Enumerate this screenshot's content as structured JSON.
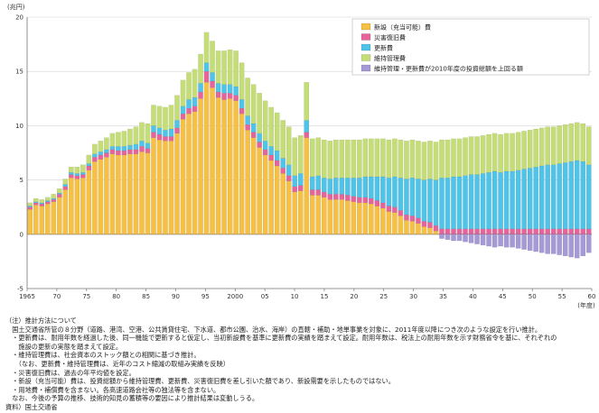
{
  "chart_data": {
    "type": "bar",
    "stacked": true,
    "unit_label": "(兆円)",
    "x_unit_label": "(年度)",
    "x_tick_labels": [
      "1965",
      "70",
      "75",
      "80",
      "85",
      "90",
      "95",
      "2000",
      "05",
      "10",
      "15",
      "20",
      "25",
      "30",
      "35",
      "40",
      "45",
      "50",
      "55",
      "60"
    ],
    "x_start": 1965,
    "x_end": 2060,
    "ylim": [
      -5,
      20
    ],
    "y_ticks": [
      -5,
      0,
      5,
      10,
      15,
      20
    ],
    "grid": "horizontal",
    "legend_position": "top-right",
    "series": [
      {
        "name": "新設（充当可能）費",
        "color": "#f6c044",
        "values": [
          2.3,
          2.7,
          2.6,
          2.8,
          3.0,
          3.4,
          4.1,
          5.2,
          5.1,
          5.2,
          5.9,
          6.7,
          6.9,
          7.1,
          7.4,
          7.3,
          7.3,
          7.4,
          7.4,
          7.6,
          7.5,
          8.9,
          8.7,
          8.6,
          8.6,
          9.3,
          10.6,
          11.1,
          11.3,
          12.5,
          14.0,
          13.5,
          12.6,
          12.4,
          12.5,
          12.3,
          11.1,
          9.6,
          8.9,
          8.0,
          7.3,
          6.8,
          6.3,
          5.6,
          4.9,
          3.9,
          4.0,
          8.9,
          3.6,
          3.6,
          3.4,
          3.2,
          3.2,
          3.2,
          3.1,
          3.0,
          2.9,
          2.9,
          2.8,
          2.6,
          2.4,
          2.1,
          2.0,
          1.7,
          1.3,
          1.2,
          1.0,
          0.7,
          0.6,
          0.3,
          0,
          0,
          0,
          0,
          0,
          0,
          0,
          0,
          0,
          0,
          0,
          0,
          0,
          0,
          0,
          0,
          0,
          0,
          0,
          0,
          0,
          0,
          0,
          0,
          0,
          0
        ]
      },
      {
        "name": "災害復旧費",
        "color": "#e5659a",
        "values": [
          0.2,
          0.2,
          0.2,
          0.2,
          0.2,
          0.3,
          0.3,
          0.3,
          0.3,
          0.3,
          0.4,
          0.4,
          0.4,
          0.4,
          0.4,
          0.4,
          0.4,
          0.4,
          0.4,
          0.5,
          0.4,
          0.5,
          0.5,
          0.4,
          0.4,
          0.5,
          0.5,
          0.5,
          0.5,
          0.6,
          1.0,
          0.6,
          0.5,
          0.6,
          0.5,
          0.5,
          0.5,
          0.5,
          0.5,
          0.5,
          0.5,
          0.5,
          0.5,
          0.5,
          0.5,
          0.5,
          0.5,
          0.5,
          0.5,
          0.5,
          0.5,
          0.5,
          0.5,
          0.5,
          0.5,
          0.5,
          0.5,
          0.5,
          0.5,
          0.5,
          0.5,
          0.5,
          0.5,
          0.5,
          0.5,
          0.5,
          0.5,
          0.5,
          0.5,
          0.5,
          0.5,
          0.5,
          0.5,
          0.5,
          0.5,
          0.5,
          0.5,
          0.5,
          0.5,
          0.5,
          0.5,
          0.5,
          0.5,
          0.5,
          0.5,
          0.5,
          0.5,
          0.5,
          0.5,
          0.5,
          0.5,
          0.5,
          0.5,
          0.5,
          0.5,
          0.5
        ]
      },
      {
        "name": "更新費",
        "color": "#4fc3e8",
        "values": [
          0.1,
          0.1,
          0.1,
          0.1,
          0.1,
          0.1,
          0.2,
          0.2,
          0.2,
          0.2,
          0.2,
          0.3,
          0.3,
          0.3,
          0.3,
          0.4,
          0.4,
          0.4,
          0.5,
          0.5,
          0.5,
          0.6,
          0.6,
          0.6,
          0.7,
          0.7,
          0.7,
          0.8,
          0.8,
          0.8,
          0.8,
          0.8,
          0.8,
          0.8,
          0.8,
          0.8,
          0.8,
          0.8,
          0.8,
          0.8,
          0.8,
          0.8,
          0.9,
          0.9,
          1.0,
          1.0,
          1.1,
          1.1,
          1.2,
          1.3,
          1.3,
          1.4,
          1.5,
          1.5,
          1.6,
          1.7,
          1.8,
          1.9,
          2.0,
          2.2,
          2.4,
          2.6,
          2.8,
          3.0,
          3.3,
          3.5,
          3.6,
          3.8,
          4.0,
          4.2,
          4.7,
          4.7,
          4.8,
          4.8,
          4.9,
          5.0,
          5.0,
          5.1,
          5.2,
          5.3,
          5.2,
          5.3,
          5.3,
          5.4,
          5.5,
          5.6,
          5.7,
          5.8,
          5.9,
          5.9,
          6.0,
          6.1,
          6.2,
          6.3,
          6.2,
          5.9
        ]
      },
      {
        "name": "維持管理費",
        "color": "#c5dd76",
        "values": [
          0.3,
          0.3,
          0.3,
          0.3,
          0.4,
          0.4,
          0.5,
          0.5,
          0.6,
          0.7,
          0.8,
          0.9,
          1.0,
          1.1,
          1.2,
          1.3,
          1.4,
          1.5,
          1.6,
          1.7,
          1.8,
          1.9,
          2.0,
          2.1,
          2.2,
          2.3,
          2.4,
          2.5,
          2.6,
          2.7,
          2.8,
          2.9,
          3.0,
          3.1,
          3.2,
          3.3,
          3.4,
          3.5,
          3.6,
          3.7,
          3.7,
          3.6,
          3.5,
          3.5,
          3.5,
          3.5,
          3.5,
          3.5,
          3.5,
          3.5,
          3.5,
          3.5,
          3.5,
          3.5,
          3.5,
          3.5,
          3.5,
          3.5,
          3.5,
          3.5,
          3.5,
          3.5,
          3.5,
          3.5,
          3.5,
          3.5,
          3.5,
          3.5,
          3.5,
          3.5,
          3.5,
          3.5,
          3.5,
          3.5,
          3.5,
          3.5,
          3.5,
          3.5,
          3.5,
          3.5,
          3.5,
          3.5,
          3.5,
          3.5,
          3.5,
          3.5,
          3.5,
          3.5,
          3.5,
          3.5,
          3.5,
          3.5,
          3.5,
          3.5,
          3.5,
          3.5
        ]
      },
      {
        "name": "維持管理・更新費が2010年度の投資総額を上回る額",
        "color": "#a69ad6",
        "values": [
          0,
          0,
          0,
          0,
          0,
          0,
          0,
          0,
          0,
          0,
          0,
          0,
          0,
          0,
          0,
          0,
          0,
          0,
          0,
          0,
          0,
          0,
          0,
          0,
          0,
          0,
          0,
          0,
          0,
          0,
          0,
          0,
          0,
          0,
          0,
          0,
          0,
          0,
          0,
          0,
          0,
          0,
          0,
          0,
          0,
          0,
          0,
          0,
          0,
          0,
          0,
          0,
          0,
          0,
          0,
          0,
          0,
          0,
          0,
          0,
          0,
          0,
          0,
          0,
          0,
          0,
          0,
          0,
          0,
          0,
          -0.4,
          -0.5,
          -0.6,
          -0.6,
          -0.7,
          -0.8,
          -0.9,
          -1.0,
          -1.1,
          -1.2,
          -1.1,
          -1.2,
          -1.2,
          -1.3,
          -1.4,
          -1.5,
          -1.6,
          -1.7,
          -1.8,
          -1.8,
          -1.9,
          -2.0,
          -2.1,
          -2.2,
          -2.0,
          -1.7
        ]
      }
    ]
  },
  "notes": [
    "（注）推計方法について",
    "　国土交通省所管の８分野（道路、港湾、空港、公共賃貸住宅、下水道、都市公園、治水、海岸）の直轄・補助・地単事業を対象に、2011年度以降につき次のような設定を行い推計。",
    "　・更新費は、耐用年数を経過した後、同一機能で更新すると仮定し、当初新設費を基準に更新費の実績を踏まえて設定。耐用年数は、税法上の耐用年数を示す財務省令を基に、それぞれの",
    "　　施設の更新の実態を踏まえて設定。",
    "　・維持管理費は、社会資本のストック額との相関に基づき推計。",
    "　　（なお、更新費・維持管理費は、近年のコスト縮減の取組み実績を反映）",
    "　・災害復旧費は、過去の年平均値を設定。",
    "　・新設（充当可能）費は、投資総額から維持管理費、更新費、災害復旧費を差し引いた額であり、新設需要を示したものではない。",
    "　・用地費・補償費を含まない。各高速道路会社等の独法等を含まない。",
    "　なお、今後の予算の推移、技術的知見の蓄積等の要因により推計結果は変動しうる。",
    "資料）国土交通省"
  ]
}
